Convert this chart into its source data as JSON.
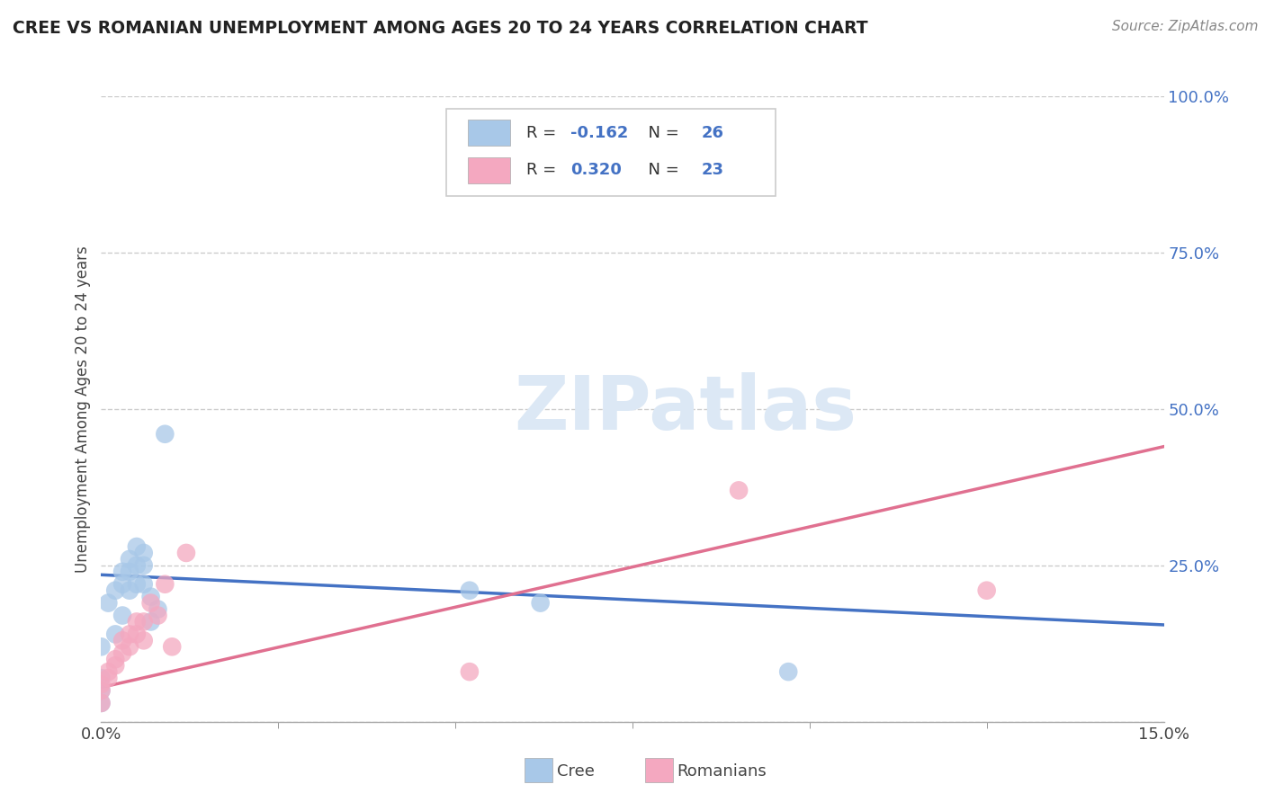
{
  "title": "CREE VS ROMANIAN UNEMPLOYMENT AMONG AGES 20 TO 24 YEARS CORRELATION CHART",
  "source": "Source: ZipAtlas.com",
  "ylabel": "Unemployment Among Ages 20 to 24 years",
  "xlim": [
    0.0,
    0.15
  ],
  "ylim": [
    0.0,
    1.0
  ],
  "xticks": [
    0.0,
    0.15
  ],
  "xticklabels": [
    "0.0%",
    "15.0%"
  ],
  "yticks": [
    0.0,
    0.25,
    0.5,
    0.75,
    1.0
  ],
  "yticklabels": [
    "",
    "25.0%",
    "50.0%",
    "75.0%",
    "100.0%"
  ],
  "cree_color": "#a8c8e8",
  "romanian_color": "#f4a8c0",
  "cree_line_color": "#4472c4",
  "romanian_line_color": "#e07090",
  "watermark_color": "#dce8f5",
  "grid_color": "#cccccc",
  "background_color": "#ffffff",
  "cree_R": "-0.162",
  "cree_N": "26",
  "romanian_R": "0.320",
  "romanian_N": "23",
  "cree_scatter_x": [
    0.0,
    0.0,
    0.0,
    0.0,
    0.001,
    0.002,
    0.002,
    0.003,
    0.003,
    0.003,
    0.004,
    0.004,
    0.004,
    0.005,
    0.005,
    0.005,
    0.006,
    0.006,
    0.006,
    0.007,
    0.007,
    0.008,
    0.009,
    0.052,
    0.062,
    0.097
  ],
  "cree_scatter_y": [
    0.03,
    0.05,
    0.07,
    0.12,
    0.19,
    0.14,
    0.21,
    0.17,
    0.22,
    0.24,
    0.21,
    0.24,
    0.26,
    0.22,
    0.25,
    0.28,
    0.22,
    0.25,
    0.27,
    0.16,
    0.2,
    0.18,
    0.46,
    0.21,
    0.19,
    0.08
  ],
  "romanian_scatter_x": [
    0.0,
    0.0,
    0.0,
    0.001,
    0.001,
    0.002,
    0.002,
    0.003,
    0.003,
    0.004,
    0.004,
    0.005,
    0.005,
    0.006,
    0.006,
    0.007,
    0.008,
    0.009,
    0.01,
    0.012,
    0.052,
    0.09,
    0.125
  ],
  "romanian_scatter_y": [
    0.03,
    0.05,
    0.06,
    0.07,
    0.08,
    0.09,
    0.1,
    0.11,
    0.13,
    0.12,
    0.14,
    0.14,
    0.16,
    0.13,
    0.16,
    0.19,
    0.17,
    0.22,
    0.12,
    0.27,
    0.08,
    0.37,
    0.21
  ],
  "cree_trendline_x": [
    0.0,
    0.15
  ],
  "cree_trendline_y": [
    0.235,
    0.155
  ],
  "romanian_trendline_x": [
    0.0,
    0.15
  ],
  "romanian_trendline_y": [
    0.055,
    0.44
  ]
}
